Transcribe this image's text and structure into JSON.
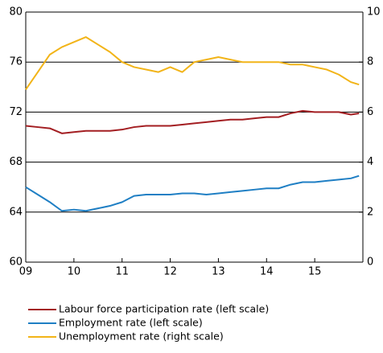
{
  "chart_data": {
    "type": "line",
    "x": [
      2009,
      2009.25,
      2009.5,
      2009.75,
      2010,
      2010.25,
      2010.5,
      2010.75,
      2011,
      2011.25,
      2011.5,
      2011.75,
      2012,
      2012.25,
      2012.5,
      2012.75,
      2013,
      2013.25,
      2013.5,
      2013.75,
      2014,
      2014.25,
      2014.5,
      2014.75,
      2015,
      2015.25,
      2015.5,
      2015.75,
      2015.92
    ],
    "series": [
      {
        "name": "Labour force participation rate (left scale)",
        "color": "#a31e22",
        "values": [
          70.9,
          70.8,
          70.7,
          70.3,
          70.4,
          70.5,
          70.5,
          70.5,
          70.6,
          70.8,
          70.9,
          70.9,
          70.9,
          71.0,
          71.1,
          71.2,
          71.3,
          71.4,
          71.4,
          71.5,
          71.6,
          71.6,
          71.9,
          72.1,
          72.0,
          72.0,
          72.0,
          71.8,
          71.9
        ]
      },
      {
        "name": "Employment rate (left scale)",
        "color": "#1f7fc4",
        "values": [
          66.0,
          65.4,
          64.8,
          64.1,
          64.2,
          64.1,
          64.3,
          64.5,
          64.8,
          65.3,
          65.4,
          65.4,
          65.4,
          65.5,
          65.5,
          65.4,
          65.5,
          65.6,
          65.7,
          65.8,
          65.9,
          65.9,
          66.2,
          66.4,
          66.4,
          66.5,
          66.6,
          66.7,
          66.9
        ]
      },
      {
        "name": "Unemployment rate (right scale)",
        "color": "#f2b418",
        "axis": "y2",
        "values": [
          6.9,
          7.6,
          8.3,
          8.6,
          8.8,
          9.0,
          8.7,
          8.4,
          8.0,
          7.8,
          7.7,
          7.6,
          7.8,
          7.6,
          8.0,
          8.1,
          8.2,
          8.1,
          8.0,
          8.0,
          8.0,
          8.0,
          7.9,
          7.9,
          7.8,
          7.7,
          7.5,
          7.2,
          7.1
        ]
      }
    ],
    "xlim": [
      2009,
      2016
    ],
    "xticks": [
      {
        "value": 2009,
        "label": "09"
      },
      {
        "value": 2010,
        "label": "10"
      },
      {
        "value": 2011,
        "label": "11"
      },
      {
        "value": 2012,
        "label": "12"
      },
      {
        "value": 2013,
        "label": "13"
      },
      {
        "value": 2014,
        "label": "14"
      },
      {
        "value": 2015,
        "label": "15"
      }
    ],
    "ylim": [
      60,
      80
    ],
    "yticks": [
      60,
      64,
      68,
      72,
      76,
      80
    ],
    "y2lim": [
      0,
      10
    ],
    "y2ticks": [
      0,
      2,
      4,
      6,
      8,
      10
    ],
    "grid": true
  }
}
